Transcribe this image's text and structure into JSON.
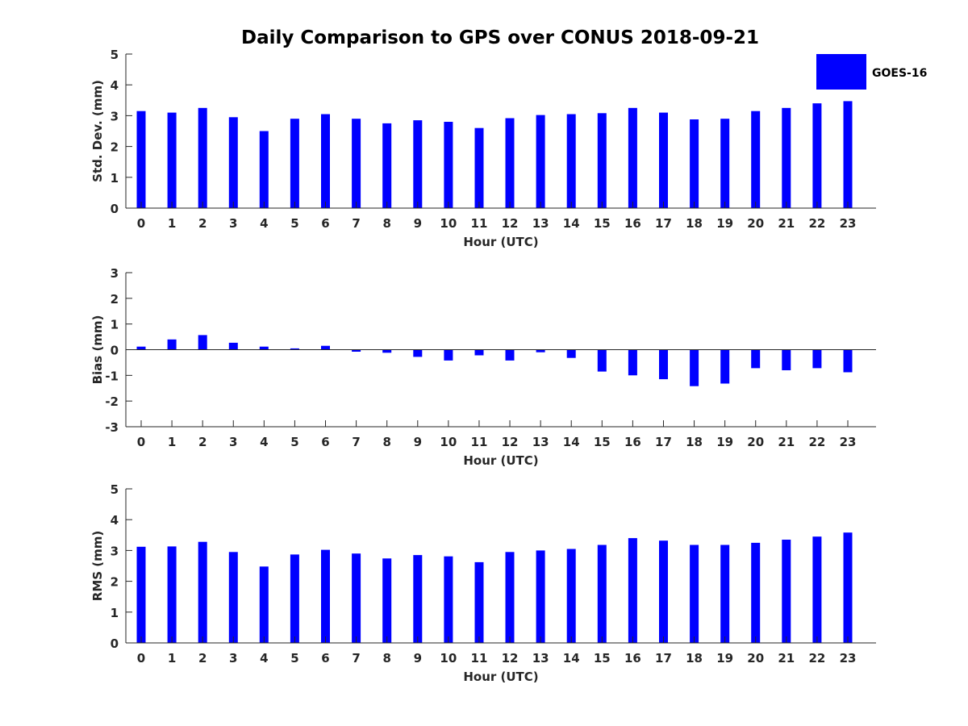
{
  "figure_title": "Daily Comparison to GPS over CONUS 2018-09-21",
  "colors": {
    "bar": "#0000ff",
    "axis": "#262626"
  },
  "legend": {
    "label": "GOES-16",
    "placement": "top-right of first panel"
  },
  "chart_data": [
    {
      "type": "bar",
      "title": "Daily Comparison to GPS over CONUS 2018-09-21",
      "xlabel": "Hour (UTC)",
      "ylabel": "Std. Dev. (mm)",
      "categories": [
        0,
        1,
        2,
        3,
        4,
        5,
        6,
        7,
        8,
        9,
        10,
        11,
        12,
        13,
        14,
        15,
        16,
        17,
        18,
        19,
        20,
        21,
        22,
        23
      ],
      "ylim": [
        0,
        5
      ],
      "yticks": [
        0,
        1,
        2,
        3,
        4,
        5
      ],
      "series": [
        {
          "name": "GOES-16",
          "values": [
            3.15,
            3.1,
            3.25,
            2.95,
            2.5,
            2.9,
            3.05,
            2.9,
            2.75,
            2.85,
            2.8,
            2.6,
            2.92,
            3.02,
            3.05,
            3.08,
            3.25,
            3.1,
            2.88,
            2.9,
            3.15,
            3.25,
            3.4,
            3.47
          ]
        }
      ]
    },
    {
      "type": "bar",
      "title": "",
      "xlabel": "Hour (UTC)",
      "ylabel": "Bias (mm)",
      "categories": [
        0,
        1,
        2,
        3,
        4,
        5,
        6,
        7,
        8,
        9,
        10,
        11,
        12,
        13,
        14,
        15,
        16,
        17,
        18,
        19,
        20,
        21,
        22,
        23
      ],
      "ylim": [
        -3,
        3
      ],
      "yticks": [
        -3,
        -2,
        -1,
        0,
        1,
        2,
        3
      ],
      "baseline": 0,
      "series": [
        {
          "name": "GOES-16",
          "values": [
            0.12,
            0.4,
            0.57,
            0.27,
            0.12,
            0.05,
            0.15,
            -0.08,
            -0.12,
            -0.28,
            -0.42,
            -0.22,
            -0.42,
            -0.1,
            -0.32,
            -0.85,
            -1.0,
            -1.15,
            -1.42,
            -1.32,
            -0.72,
            -0.8,
            -0.72,
            -0.88
          ]
        }
      ]
    },
    {
      "type": "bar",
      "title": "",
      "xlabel": "Hour (UTC)",
      "ylabel": "RMS (mm)",
      "categories": [
        0,
        1,
        2,
        3,
        4,
        5,
        6,
        7,
        8,
        9,
        10,
        11,
        12,
        13,
        14,
        15,
        16,
        17,
        18,
        19,
        20,
        21,
        22,
        23
      ],
      "ylim": [
        0,
        5
      ],
      "yticks": [
        0,
        1,
        2,
        3,
        4,
        5
      ],
      "series": [
        {
          "name": "GOES-16",
          "values": [
            3.12,
            3.13,
            3.28,
            2.95,
            2.48,
            2.87,
            3.02,
            2.9,
            2.74,
            2.85,
            2.81,
            2.62,
            2.95,
            3.0,
            3.05,
            3.18,
            3.4,
            3.32,
            3.18,
            3.18,
            3.25,
            3.35,
            3.45,
            3.58
          ]
        }
      ]
    }
  ]
}
